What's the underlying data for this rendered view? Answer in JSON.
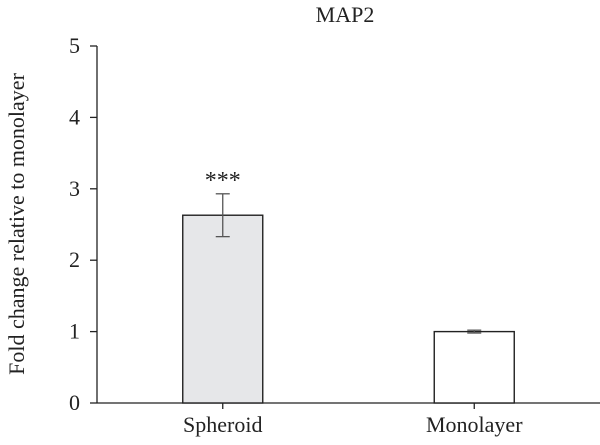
{
  "chart_data": {
    "type": "bar",
    "title": "MAP2",
    "xlabel": "",
    "ylabel": "Fold change relative to monolayer",
    "categories": [
      "Spheroid",
      "Monolayer"
    ],
    "values": [
      2.63,
      1.0
    ],
    "error": [
      0.3,
      0.02
    ],
    "annotations": [
      "***",
      ""
    ],
    "bar_colors": [
      "#e6e7e9",
      "#ffffff"
    ],
    "ylim": [
      0,
      5
    ],
    "yticks": [
      "0",
      "1",
      "2",
      "3",
      "4",
      "5"
    ],
    "grid": false
  }
}
